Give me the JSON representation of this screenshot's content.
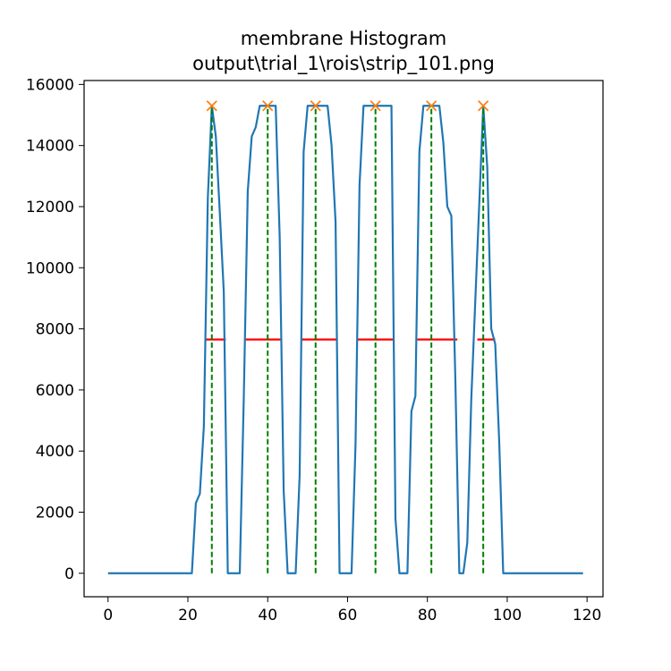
{
  "chart_data": {
    "type": "line",
    "title": "membrane Histogram",
    "subtitle": "output\\trial_1\\rois\\strip_101.png",
    "xlabel": "",
    "ylabel": "",
    "xlim": [
      -6,
      124
    ],
    "ylim": [
      -768,
      16128
    ],
    "xticks": [
      0,
      20,
      40,
      60,
      80,
      100,
      120
    ],
    "yticks": [
      0,
      2000,
      4000,
      6000,
      8000,
      10000,
      12000,
      14000,
      16000
    ],
    "grid": false,
    "colors": {
      "series": "#1f77b4",
      "peaks": "#ff7f0e",
      "peak_lines": "#008000",
      "widths": "#ff0000"
    },
    "series": [
      {
        "x": [
          0,
          1,
          2,
          3,
          4,
          5,
          6,
          7,
          8,
          9,
          10,
          11,
          12,
          13,
          14,
          15,
          16,
          17,
          18,
          19,
          20,
          21,
          22,
          23,
          24,
          25,
          26,
          27,
          28,
          29,
          30,
          31,
          32,
          33,
          34,
          35,
          36,
          37,
          38,
          39,
          40,
          41,
          42,
          43,
          44,
          45,
          46,
          47,
          48,
          49,
          50,
          51,
          52,
          53,
          54,
          55,
          56,
          57,
          58,
          59,
          60,
          61,
          62,
          63,
          64,
          65,
          66,
          67,
          68,
          69,
          70,
          71,
          72,
          73,
          74,
          75,
          76,
          77,
          78,
          79,
          80,
          81,
          82,
          83,
          84,
          85,
          86,
          87,
          88,
          89,
          90,
          91,
          92,
          93,
          94,
          95,
          96,
          97,
          98,
          99,
          100,
          101,
          102,
          103,
          104,
          105,
          106,
          107,
          108,
          109,
          110,
          111,
          112,
          113,
          114,
          115,
          116,
          117,
          118,
          119
        ],
        "values": [
          0,
          0,
          0,
          0,
          0,
          0,
          0,
          0,
          0,
          0,
          0,
          0,
          0,
          0,
          0,
          0,
          0,
          0,
          0,
          0,
          0,
          0,
          2300,
          2600,
          4800,
          12300,
          15300,
          14300,
          11800,
          9200,
          0,
          0,
          0,
          0,
          5700,
          12500,
          14300,
          14600,
          15300,
          15300,
          15300,
          15300,
          15300,
          11000,
          2700,
          0,
          0,
          0,
          3200,
          13800,
          15300,
          15300,
          15300,
          15300,
          15300,
          15300,
          14000,
          11500,
          0,
          0,
          0,
          0,
          4200,
          12700,
          15300,
          15300,
          15300,
          15300,
          15300,
          15300,
          15300,
          15300,
          1800,
          0,
          0,
          0,
          5300,
          5800,
          13800,
          15300,
          15300,
          15300,
          15300,
          15300,
          14100,
          12000,
          11700,
          6400,
          0,
          0,
          1000,
          5700,
          8900,
          12100,
          15300,
          13300,
          8000,
          7500,
          4300,
          0,
          0,
          0,
          0,
          0,
          0,
          0,
          0,
          0,
          0,
          0,
          0,
          0,
          0,
          0,
          0,
          0,
          0,
          0,
          0,
          0
        ]
      }
    ],
    "peaks": {
      "x": [
        26,
        40,
        52,
        67,
        81,
        94
      ],
      "y": [
        15300,
        15300,
        15300,
        15300,
        15300,
        15300
      ]
    },
    "widths": [
      {
        "x_start": 24.5,
        "x_end": 29.5,
        "y": 7650
      },
      {
        "x_start": 34.5,
        "x_end": 43.5,
        "y": 7650
      },
      {
        "x_start": 48.5,
        "x_end": 57.5,
        "y": 7650
      },
      {
        "x_start": 62.5,
        "x_end": 71.5,
        "y": 7650
      },
      {
        "x_start": 77.5,
        "x_end": 87.5,
        "y": 7650
      },
      {
        "x_start": 92.5,
        "x_end": 97.0,
        "y": 7650
      }
    ]
  }
}
